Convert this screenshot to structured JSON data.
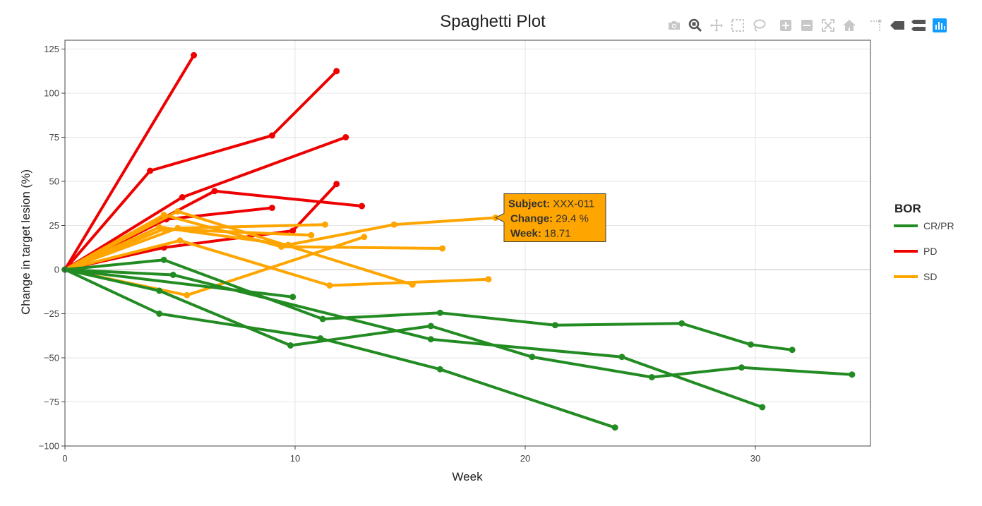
{
  "toolbar": {
    "icons": [
      "camera-icon",
      "zoom-icon",
      "pan-icon",
      "box-select-icon",
      "lasso-select-icon",
      "zoom-in-icon",
      "zoom-out-icon",
      "autoscale-icon",
      "reset-axes-icon",
      "spike-lines-icon",
      "hover-closest-icon",
      "hover-compare-icon",
      "plotly-logo-icon"
    ]
  },
  "colors": {
    "CR/PR": "#228B22",
    "PD": "#EE0000",
    "SD": "#FFA500"
  },
  "chart_data": {
    "type": "line",
    "title": "Spaghetti Plot",
    "xlabel": "Week",
    "ylabel": "Change in target lesion (%)",
    "xlim": [
      0,
      35
    ],
    "ylim": [
      -100,
      130
    ],
    "xticks": [
      0,
      10,
      20,
      30
    ],
    "yticks": [
      -100,
      -75,
      -50,
      -25,
      0,
      25,
      50,
      75,
      100,
      125
    ],
    "grid": true,
    "legend": {
      "title": "BOR",
      "placement": "right",
      "entries": [
        "CR/PR",
        "PD",
        "SD"
      ]
    },
    "series": [
      {
        "group": "PD",
        "points": [
          [
            0,
            0
          ],
          [
            5.6,
            121.5
          ]
        ]
      },
      {
        "group": "PD",
        "points": [
          [
            0,
            0
          ],
          [
            3.7,
            56
          ],
          [
            9.0,
            76
          ],
          [
            11.8,
            112.5
          ]
        ]
      },
      {
        "group": "PD",
        "points": [
          [
            0,
            0
          ],
          [
            5.1,
            41
          ],
          [
            12.2,
            75
          ]
        ]
      },
      {
        "group": "PD",
        "points": [
          [
            0,
            0
          ],
          [
            6.5,
            44.5
          ],
          [
            12.9,
            36
          ]
        ]
      },
      {
        "group": "PD",
        "points": [
          [
            0,
            0
          ],
          [
            4.4,
            28.5
          ],
          [
            9.0,
            35
          ]
        ]
      },
      {
        "group": "PD",
        "points": [
          [
            0,
            0
          ],
          [
            4.3,
            12.5
          ],
          [
            9.9,
            22
          ],
          [
            11.8,
            48.5
          ]
        ]
      },
      {
        "group": "SD",
        "points": [
          [
            0,
            0
          ],
          [
            4.3,
            31
          ],
          [
            9.4,
            13
          ],
          [
            16.4,
            12
          ]
        ]
      },
      {
        "group": "SD",
        "points": [
          [
            0,
            0
          ],
          [
            4.9,
            33
          ],
          [
            15.1,
            -8.5
          ]
        ]
      },
      {
        "group": "SD",
        "points": [
          [
            0,
            0
          ],
          [
            4.3,
            23
          ],
          [
            10.7,
            19.5
          ]
        ]
      },
      {
        "group": "SD",
        "points": [
          [
            0,
            0
          ],
          [
            4.9,
            23.5
          ],
          [
            11.3,
            25.5
          ]
        ]
      },
      {
        "group": "SD",
        "points": [
          [
            0,
            0
          ],
          [
            5.0,
            16.5
          ],
          [
            11.5,
            -9
          ],
          [
            18.4,
            -5.5
          ]
        ]
      },
      {
        "group": "SD",
        "points": [
          [
            0,
            0
          ],
          [
            5.3,
            -14.5
          ],
          [
            13.0,
            18.5
          ]
        ]
      },
      {
        "group": "SD",
        "points": [
          [
            0,
            0
          ],
          [
            4.1,
            24
          ],
          [
            9.7,
            14
          ],
          [
            14.3,
            25.5
          ],
          [
            18.71,
            29.4
          ]
        ]
      },
      {
        "group": "CR/PR",
        "points": [
          [
            0,
            0
          ],
          [
            4.3,
            5.5
          ],
          [
            11.2,
            -28
          ],
          [
            16.3,
            -24.5
          ],
          [
            21.3,
            -31.5
          ],
          [
            26.8,
            -30.5
          ],
          [
            29.8,
            -42.5
          ],
          [
            31.6,
            -45.5
          ]
        ]
      },
      {
        "group": "CR/PR",
        "points": [
          [
            0,
            0
          ],
          [
            4.7,
            -3
          ],
          [
            15.9,
            -39.5
          ],
          [
            24.2,
            -49.5
          ],
          [
            30.3,
            -78
          ]
        ]
      },
      {
        "group": "CR/PR",
        "points": [
          [
            0,
            0
          ],
          [
            4.1,
            -25
          ],
          [
            11.1,
            -39
          ],
          [
            16.3,
            -56.5
          ],
          [
            23.9,
            -89.5
          ]
        ]
      },
      {
        "group": "CR/PR",
        "points": [
          [
            0,
            0
          ],
          [
            4.1,
            -12
          ],
          [
            9.8,
            -43
          ],
          [
            15.9,
            -32
          ],
          [
            20.3,
            -49.5
          ],
          [
            25.5,
            -61
          ],
          [
            29.4,
            -55.5
          ],
          [
            34.2,
            -59.5
          ]
        ]
      },
      {
        "group": "CR/PR",
        "points": [
          [
            0,
            0
          ],
          [
            9.9,
            -15.5
          ]
        ]
      }
    ],
    "tooltip": {
      "subject_label": "Subject:",
      "subject_value": "XXX-011",
      "change_label": "Change:",
      "change_value": "29.4 %",
      "week_label": "Week:",
      "week_value": "18.71",
      "x": 18.71,
      "y": 29.4,
      "group": "SD"
    }
  }
}
